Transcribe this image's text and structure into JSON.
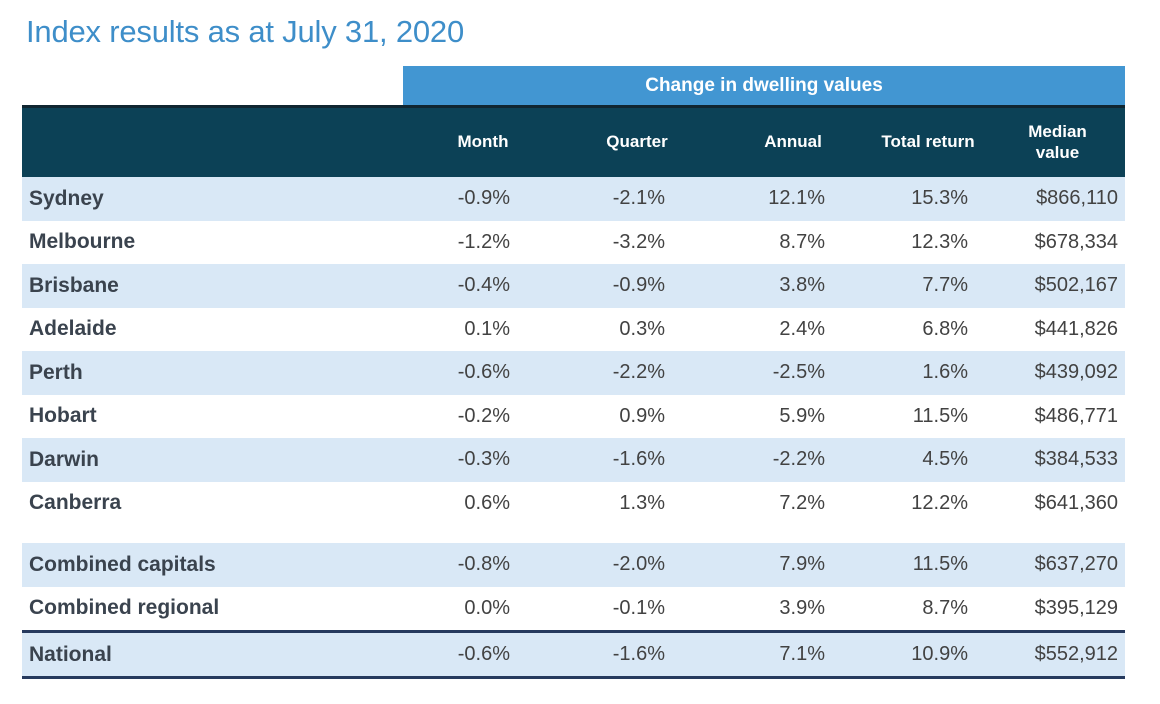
{
  "chart_data": {
    "type": "table",
    "title": "Index results as at July 31, 2020",
    "group_header": "Change in dwelling values",
    "columns": [
      "Month",
      "Quarter",
      "Annual",
      "Total return",
      "Median value"
    ],
    "rows": [
      {
        "region": "Sydney",
        "month": "-0.9%",
        "quarter": "-2.1%",
        "annual": "12.1%",
        "total_return": "15.3%",
        "median_value": "$866,110"
      },
      {
        "region": "Melbourne",
        "month": "-1.2%",
        "quarter": "-3.2%",
        "annual": "8.7%",
        "total_return": "12.3%",
        "median_value": "$678,334"
      },
      {
        "region": "Brisbane",
        "month": "-0.4%",
        "quarter": "-0.9%",
        "annual": "3.8%",
        "total_return": "7.7%",
        "median_value": "$502,167"
      },
      {
        "region": "Adelaide",
        "month": "0.1%",
        "quarter": "0.3%",
        "annual": "2.4%",
        "total_return": "6.8%",
        "median_value": "$441,826"
      },
      {
        "region": "Perth",
        "month": "-0.6%",
        "quarter": "-2.2%",
        "annual": "-2.5%",
        "total_return": "1.6%",
        "median_value": "$439,092"
      },
      {
        "region": "Hobart",
        "month": "-0.2%",
        "quarter": "0.9%",
        "annual": "5.9%",
        "total_return": "11.5%",
        "median_value": "$486,771"
      },
      {
        "region": "Darwin",
        "month": "-0.3%",
        "quarter": "-1.6%",
        "annual": "-2.2%",
        "total_return": "4.5%",
        "median_value": "$384,533"
      },
      {
        "region": "Canberra",
        "month": "0.6%",
        "quarter": "1.3%",
        "annual": "7.2%",
        "total_return": "12.2%",
        "median_value": "$641,360"
      }
    ],
    "summary_rows": [
      {
        "region": "Combined capitals",
        "month": "-0.8%",
        "quarter": "-2.0%",
        "annual": "7.9%",
        "total_return": "11.5%",
        "median_value": "$637,270"
      },
      {
        "region": "Combined regional",
        "month": "0.0%",
        "quarter": "-0.1%",
        "annual": "3.9%",
        "total_return": "8.7%",
        "median_value": "$395,129"
      }
    ],
    "national": {
      "region": "National",
      "month": "-0.6%",
      "quarter": "-1.6%",
      "annual": "7.1%",
      "total_return": "10.9%",
      "median_value": "$552,912"
    },
    "layout_hints": {
      "striped_rows": true,
      "stripe_pattern": "odd rows shaded",
      "group_header_spans": "value columns only"
    }
  },
  "colors": {
    "title_blue": "#3e8ec9",
    "band_blue": "#4296d2",
    "header_navy": "#0c4156",
    "stripe_blue": "#d9e8f6",
    "rule_navy": "#263a5e",
    "label_text": "#3a434e",
    "value_text": "#424242"
  }
}
